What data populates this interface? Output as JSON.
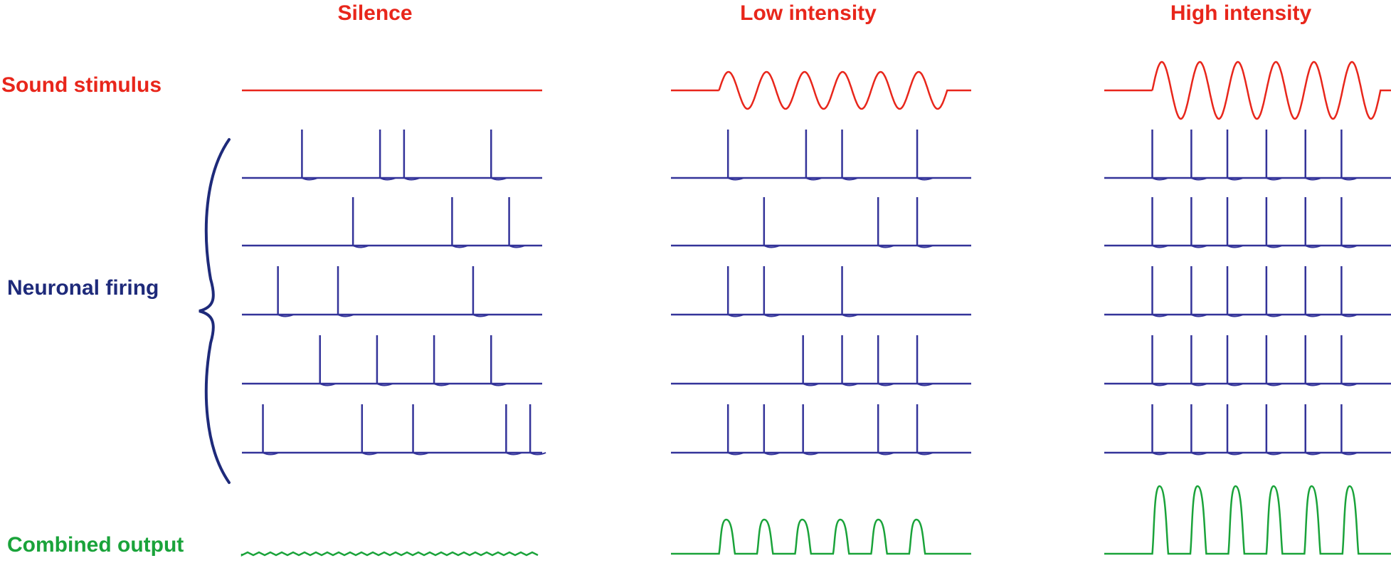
{
  "columns": [
    {
      "title": "Silence"
    },
    {
      "title": "Low intensity"
    },
    {
      "title": "High intensity"
    }
  ],
  "rows": {
    "stimulus_label": "Sound stimulus",
    "firing_label": "Neuronal firing",
    "output_label": "Combined output"
  },
  "colors": {
    "stimulus": "#e8261b",
    "firing": "#333399",
    "output": "#1aa33a",
    "brace": "#1e2a7a"
  },
  "panels": [
    {
      "condition": "Silence",
      "stimulus": {
        "cycles": 0,
        "amplitude": 0
      },
      "spike_trains": [
        [
          0.2,
          0.46,
          0.54,
          0.83
        ],
        [
          0.37,
          0.7,
          0.89
        ],
        [
          0.12,
          0.32,
          0.77
        ],
        [
          0.26,
          0.45,
          0.64,
          0.83
        ],
        [
          0.07,
          0.4,
          0.57,
          0.88,
          0.96
        ]
      ],
      "output": {
        "pulses": 0,
        "amplitude": 0
      }
    },
    {
      "condition": "Low intensity",
      "stimulus": {
        "cycles": 6,
        "amplitude": 1
      },
      "spike_trains": [
        [
          0.19,
          0.45,
          0.57,
          0.82
        ],
        [
          0.31,
          0.69,
          0.82
        ],
        [
          0.19,
          0.31,
          0.57
        ],
        [
          0.44,
          0.57,
          0.69,
          0.82
        ],
        [
          0.19,
          0.31,
          0.44,
          0.69,
          0.82
        ]
      ],
      "output": {
        "pulses": 6,
        "amplitude": 1
      }
    },
    {
      "condition": "High intensity",
      "stimulus": {
        "cycles": 6,
        "amplitude": 2
      },
      "spike_trains": [
        [
          0.16,
          0.29,
          0.41,
          0.54,
          0.67,
          0.79
        ],
        [
          0.16,
          0.29,
          0.41,
          0.54,
          0.67,
          0.79
        ],
        [
          0.16,
          0.29,
          0.41,
          0.54,
          0.67,
          0.79
        ],
        [
          0.16,
          0.29,
          0.41,
          0.54,
          0.67,
          0.79
        ],
        [
          0.16,
          0.29,
          0.41,
          0.54,
          0.67,
          0.79
        ]
      ],
      "output": {
        "pulses": 6,
        "amplitude": 2
      }
    }
  ]
}
